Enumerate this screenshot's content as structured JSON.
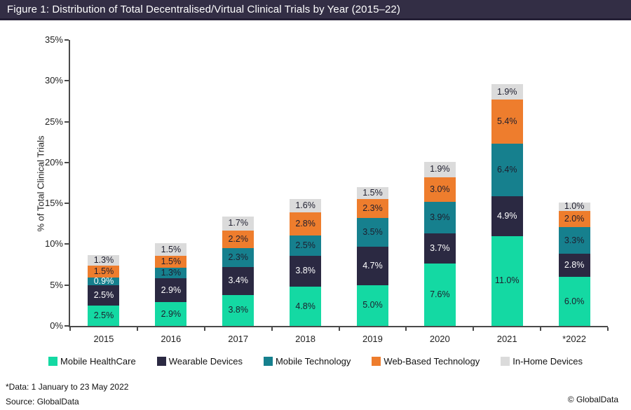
{
  "header": {
    "title": "Figure 1: Distribution of Total Decentralised/Virtual Clinical Trials by Year (2015–22)",
    "bg_color": "#332e45"
  },
  "y_axis": {
    "title": "% of Total Clinical Trials",
    "ticks": [
      "0%",
      "5%",
      "10%",
      "15%",
      "20%",
      "25%",
      "30%",
      "35%"
    ]
  },
  "footer": {
    "note": "*Data: 1 January to 23 May 2022",
    "source": "Source: GlobalData",
    "copyright": "© GlobalData"
  },
  "chart_data": {
    "type": "bar",
    "stacked": true,
    "title": "Figure 1: Distribution of Total Decentralised/Virtual Clinical Trials by Year (2015–22)",
    "xlabel": "",
    "ylabel": "% of Total Clinical Trials",
    "ylim": [
      0,
      35
    ],
    "y_tick_step": 5,
    "grid": false,
    "legend_position": "bottom",
    "value_suffix": "%",
    "categories": [
      "2015",
      "2016",
      "2017",
      "2018",
      "2019",
      "2020",
      "2021",
      "*2022"
    ],
    "series": [
      {
        "name": "Mobile HealthCare",
        "color": "#14d9a3",
        "label_color": "#1e1e2e",
        "values": [
          2.5,
          2.9,
          3.8,
          4.8,
          5.0,
          7.6,
          11.0,
          6.0
        ]
      },
      {
        "name": "Wearable Devices",
        "color": "#2b2942",
        "label_color": "#ffffff",
        "values": [
          2.5,
          2.9,
          3.4,
          3.8,
          4.7,
          3.7,
          4.9,
          2.8
        ]
      },
      {
        "name": "Mobile Technology",
        "color": "#16808e",
        "label_color": "#1e1e2e",
        "label_color_overrides": {
          "0": "#ffffff"
        },
        "values": [
          0.9,
          1.3,
          2.3,
          2.5,
          3.5,
          3.9,
          6.4,
          3.3
        ]
      },
      {
        "name": "Web-Based Technology",
        "color": "#ee7d2d",
        "label_color": "#1e1e2e",
        "values": [
          1.5,
          1.5,
          2.2,
          2.8,
          2.3,
          3.0,
          5.4,
          2.0
        ]
      },
      {
        "name": "In-Home Devices",
        "color": "#dbdbdb",
        "label_color": "#1e1e2e",
        "values": [
          1.3,
          1.5,
          1.7,
          1.6,
          1.5,
          1.9,
          1.9,
          1.0
        ]
      }
    ]
  }
}
